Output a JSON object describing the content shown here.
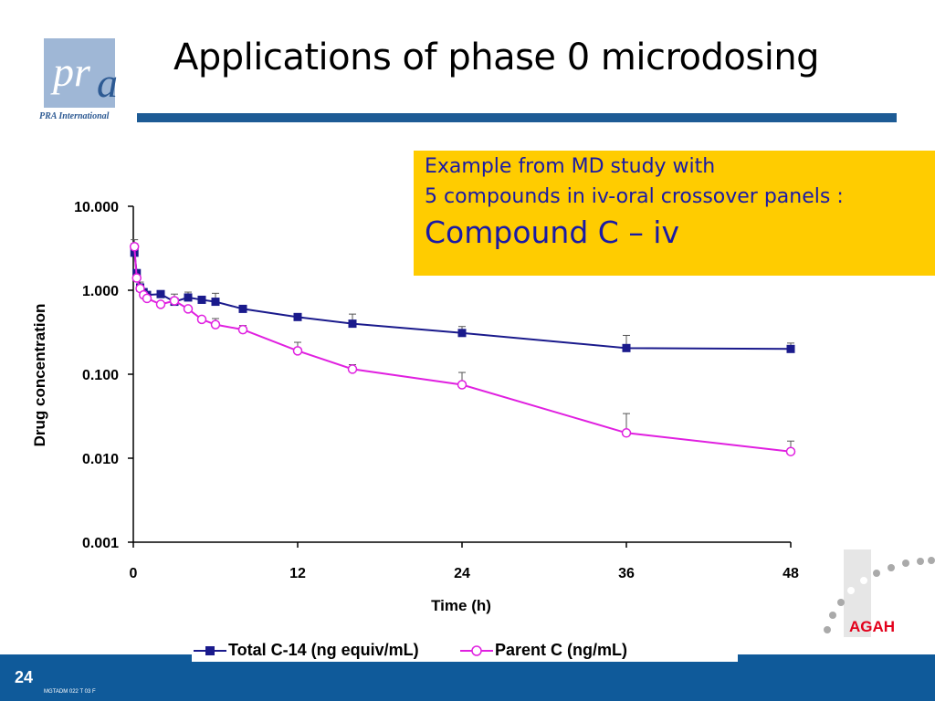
{
  "slide": {
    "title": "Applications of phase 0 microdosing",
    "page_number": "24",
    "doc_code": "MGTADM 022 T 03 F"
  },
  "logo": {
    "text_pr": "pr",
    "text_a": "a",
    "company": "PRA International"
  },
  "callout": {
    "line1": "Example from MD study with",
    "line2": "5 compounds in iv-oral crossover panels :",
    "line3": "Compound C – iv",
    "background": "#ffcc00",
    "text_color": "#1a1aa6"
  },
  "agah_logo": {
    "text": "AGAH"
  },
  "colors": {
    "footer": "#0f5a9a",
    "title_rule": "#1d5b95"
  },
  "chart_data": {
    "type": "line",
    "title": "",
    "xlabel": "Time (h)",
    "ylabel": "Drug concentration",
    "x_ticks": [
      0,
      12,
      24,
      36,
      48
    ],
    "y_ticks": [
      10,
      1,
      0.1,
      0.01,
      0.001
    ],
    "y_tick_labels": [
      "10.000",
      "1.000",
      "0.100",
      "0.010",
      "0.001"
    ],
    "xlim": [
      0,
      48
    ],
    "ylim": [
      0.001,
      10
    ],
    "y_scale": "log",
    "grid": false,
    "legend_position": "bottom",
    "series": [
      {
        "name": "Total C-14 (ng equiv/mL)",
        "color": "#1a1a8c",
        "marker": "filled-square",
        "points": [
          {
            "x": 0.08,
            "y": 2.8,
            "err": 3.6
          },
          {
            "x": 0.25,
            "y": 1.6
          },
          {
            "x": 0.5,
            "y": 1.08,
            "err": 1.25
          },
          {
            "x": 0.75,
            "y": 0.95
          },
          {
            "x": 1,
            "y": 0.88
          },
          {
            "x": 2,
            "y": 0.9
          },
          {
            "x": 3,
            "y": 0.73,
            "err": 0.9
          },
          {
            "x": 4,
            "y": 0.82,
            "err": 0.95
          },
          {
            "x": 5,
            "y": 0.77
          },
          {
            "x": 6,
            "y": 0.73,
            "err": 0.92
          },
          {
            "x": 8,
            "y": 0.6
          },
          {
            "x": 12,
            "y": 0.48
          },
          {
            "x": 16,
            "y": 0.4,
            "err": 0.52
          },
          {
            "x": 24,
            "y": 0.31,
            "err": 0.37
          },
          {
            "x": 36,
            "y": 0.205,
            "err": 0.29
          },
          {
            "x": 48,
            "y": 0.2,
            "err": 0.235
          }
        ]
      },
      {
        "name": "Parent C (ng/mL)",
        "color": "#e020e0",
        "marker": "open-circle",
        "points": [
          {
            "x": 0.08,
            "y": 3.3,
            "err": 4.0
          },
          {
            "x": 0.25,
            "y": 1.4
          },
          {
            "x": 0.5,
            "y": 1.05
          },
          {
            "x": 0.75,
            "y": 0.88
          },
          {
            "x": 1,
            "y": 0.8
          },
          {
            "x": 2,
            "y": 0.68
          },
          {
            "x": 3,
            "y": 0.75
          },
          {
            "x": 4,
            "y": 0.6
          },
          {
            "x": 5,
            "y": 0.45
          },
          {
            "x": 6,
            "y": 0.39,
            "err": 0.46
          },
          {
            "x": 8,
            "y": 0.34,
            "err": 0.38
          },
          {
            "x": 12,
            "y": 0.19,
            "err": 0.24
          },
          {
            "x": 16,
            "y": 0.115,
            "err": 0.13
          },
          {
            "x": 24,
            "y": 0.075,
            "err": 0.105
          },
          {
            "x": 36,
            "y": 0.02,
            "err": 0.034
          },
          {
            "x": 48,
            "y": 0.012,
            "err": 0.016
          }
        ]
      }
    ]
  }
}
